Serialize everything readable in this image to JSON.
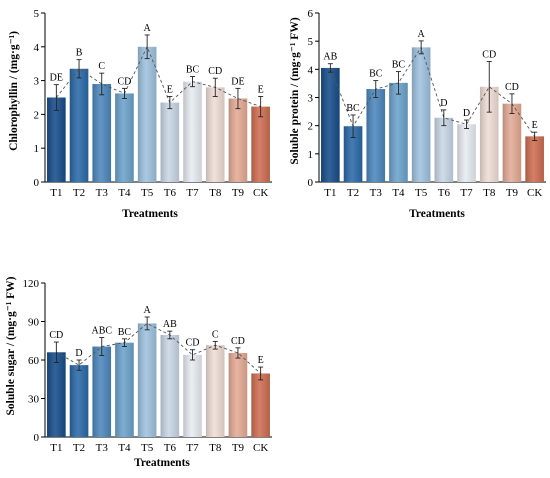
{
  "colors": [
    "#174d8a",
    "#2a69a8",
    "#4c87bd",
    "#6ca2cc",
    "#9ec1df",
    "#c9d6e6",
    "#e7ecf2",
    "#f0ddd6",
    "#e4aa96",
    "#cf6d52"
  ],
  "chart_data": [
    {
      "type": "bar",
      "categories": [
        "T1",
        "T2",
        "T3",
        "T4",
        "T5",
        "T6",
        "T7",
        "T8",
        "T9",
        "CK"
      ],
      "values": [
        2.5,
        3.35,
        2.9,
        2.62,
        4.0,
        2.35,
        2.97,
        2.8,
        2.47,
        2.23
      ],
      "errors": [
        0.38,
        0.27,
        0.32,
        0.15,
        0.35,
        0.18,
        0.15,
        0.27,
        0.3,
        0.3
      ],
      "letters": [
        "DE",
        "B",
        "C",
        "CD",
        "A",
        "E",
        "BC",
        "CD",
        "DE",
        "E"
      ],
      "xlabel": "Treatments",
      "ylabel": "Chlorophyllin / (mg·g⁻¹)",
      "ylim": [
        0,
        5
      ],
      "yticks": [
        0,
        1,
        2,
        3,
        4,
        5
      ],
      "trend_line": "dashed"
    },
    {
      "type": "bar",
      "categories": [
        "T1",
        "T2",
        "T3",
        "T4",
        "T5",
        "T6",
        "T7",
        "T8",
        "T9",
        "CK"
      ],
      "values": [
        4.05,
        1.98,
        3.3,
        3.52,
        4.78,
        2.28,
        2.05,
        3.38,
        2.78,
        1.62
      ],
      "errors": [
        0.15,
        0.4,
        0.3,
        0.4,
        0.23,
        0.28,
        0.15,
        0.9,
        0.35,
        0.15
      ],
      "letters": [
        "AB",
        "BC",
        "BC",
        "BC",
        "A",
        "D",
        "D",
        "CD",
        "CD",
        "E"
      ],
      "xlabel": "Treatments",
      "ylabel": "Soluble protein / (mg·g⁻¹ FW)",
      "ylim": [
        0,
        6
      ],
      "yticks": [
        0,
        1,
        2,
        3,
        4,
        5,
        6
      ],
      "trend_line": "dashed"
    },
    {
      "type": "bar",
      "categories": [
        "T1",
        "T2",
        "T3",
        "T4",
        "T5",
        "T6",
        "T7",
        "T8",
        "T9",
        "CK"
      ],
      "values": [
        66,
        56,
        70.5,
        73.5,
        88.5,
        79.5,
        64,
        71.5,
        65.5,
        49.5
      ],
      "errors": [
        8,
        4,
        7,
        3,
        5,
        3,
        4,
        3,
        4,
        5
      ],
      "letters": [
        "CD",
        "D",
        "ABC",
        "BC",
        "A",
        "AB",
        "CD",
        "C",
        "CD",
        "E"
      ],
      "xlabel": "Treatments",
      "ylabel": "Soluble sugar / (mg·g⁻¹ FW)",
      "ylim": [
        0,
        120
      ],
      "yticks": [
        0,
        30,
        60,
        90,
        120
      ],
      "trend_line": "dashed"
    }
  ]
}
